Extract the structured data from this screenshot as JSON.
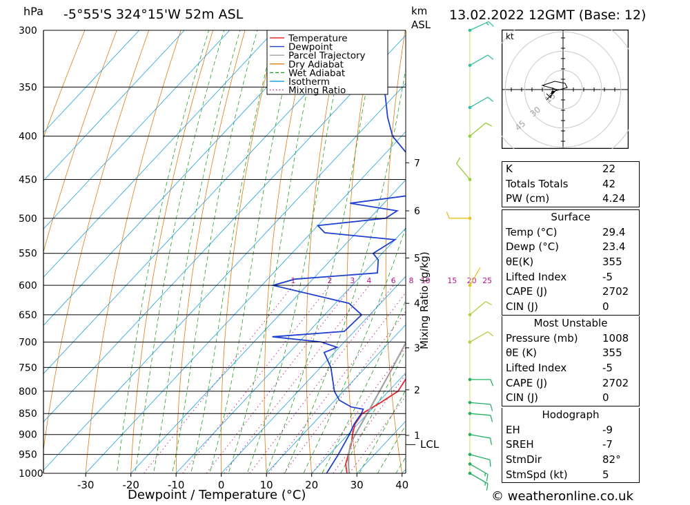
{
  "header": {
    "pressure_unit": "hPa",
    "location": "-5°55'S 324°15'W 52m ASL",
    "km_label": "km",
    "asl_label": "ASL",
    "datetime": "13.02.2022 12GMT (Base: 12)"
  },
  "footer": {
    "xlabel": "Dewpoint / Temperature (°C)",
    "mixing_label": "Mixing Ratio (g/kg)",
    "lcl_label": "LCL",
    "credit": "© weatheronline.co.uk"
  },
  "legend": [
    {
      "label": "Temperature",
      "color": "#e8282d",
      "style": "solid"
    },
    {
      "label": "Dewpoint",
      "color": "#1f3fd0",
      "style": "solid"
    },
    {
      "label": "Parcel Trajectory",
      "color": "#a0a0a0",
      "style": "solid"
    },
    {
      "label": "Dry Adiabat",
      "color": "#e07a10",
      "style": "solid"
    },
    {
      "label": "Wet Adiabat",
      "color": "#20a020",
      "style": "dashed"
    },
    {
      "label": "Isotherm",
      "color": "#1ea0e0",
      "style": "solid"
    },
    {
      "label": "Mixing Ratio",
      "color": "#c0108a",
      "style": "dotted"
    }
  ],
  "hodograph": {
    "unit": "kt",
    "ring_labels": [
      "15",
      "30",
      "45"
    ]
  },
  "indices": {
    "general": [
      {
        "key": "K",
        "value": "22"
      },
      {
        "key": "Totals Totals",
        "value": "42"
      },
      {
        "key": "PW (cm)",
        "value": "4.24"
      }
    ],
    "surface_title": "Surface",
    "surface": [
      {
        "key": "Temp (°C)",
        "value": "29.4"
      },
      {
        "key": "Dewp (°C)",
        "value": "23.4"
      },
      {
        "key": "θE(K)",
        "value": "355"
      },
      {
        "key": "Lifted Index",
        "value": "-5"
      },
      {
        "key": "CAPE (J)",
        "value": "2702"
      },
      {
        "key": "CIN (J)",
        "value": "0"
      }
    ],
    "mu_title": "Most Unstable",
    "mu": [
      {
        "key": "Pressure (mb)",
        "value": "1008"
      },
      {
        "key": "θE (K)",
        "value": "355"
      },
      {
        "key": "Lifted Index",
        "value": "-5"
      },
      {
        "key": "CAPE (J)",
        "value": "2702"
      },
      {
        "key": "CIN (J)",
        "value": "0"
      }
    ],
    "hodo_title": "Hodograph",
    "hodo": [
      {
        "key": "EH",
        "value": "-9"
      },
      {
        "key": "SREH",
        "value": "-7"
      },
      {
        "key": "StmDir",
        "value": "82°"
      },
      {
        "key": "StmSpd (kt)",
        "value": "5"
      }
    ]
  },
  "chart_data": {
    "type": "line",
    "title": "-5°55'S 324°15'W 52m ASL",
    "xlabel": "Dewpoint / Temperature (°C)",
    "ylabel": "hPa",
    "x_ticks": [
      -30,
      -20,
      -10,
      0,
      10,
      20,
      30,
      40
    ],
    "pressure_levels": [
      300,
      350,
      400,
      450,
      500,
      550,
      600,
      650,
      700,
      750,
      800,
      850,
      900,
      950,
      1000
    ],
    "ylim": [
      1000,
      300
    ],
    "km_ticks": [
      {
        "km": "1",
        "p": 902
      },
      {
        "km": "2",
        "p": 797
      },
      {
        "km": "3",
        "p": 711
      },
      {
        "km": "4",
        "p": 630
      },
      {
        "km": "5",
        "p": 557
      },
      {
        "km": "6",
        "p": 490
      },
      {
        "km": "7",
        "p": 430
      }
    ],
    "lcl_p": 925,
    "mixing_ratio_values": [
      1,
      2,
      3,
      4,
      6,
      8,
      10,
      15,
      20,
      25
    ],
    "series": [
      {
        "name": "Temperature",
        "points": [
          [
            1008,
            29.4
          ],
          [
            1000,
            27.8
          ],
          [
            975,
            25.6
          ],
          [
            950,
            24.2
          ],
          [
            925,
            22.8
          ],
          [
            900,
            21.0
          ],
          [
            875,
            19.4
          ],
          [
            850,
            18.8
          ],
          [
            825,
            20.6
          ],
          [
            800,
            22.1
          ],
          [
            775,
            21.3
          ],
          [
            750,
            20.1
          ],
          [
            725,
            18.7
          ],
          [
            700,
            17.1
          ],
          [
            650,
            14.2
          ],
          [
            600,
            11.0
          ],
          [
            570,
            9.6
          ],
          [
            550,
            9.7
          ],
          [
            525,
            8.8
          ],
          [
            500,
            7.4
          ],
          [
            480,
            5.9
          ],
          [
            450,
            3.0
          ],
          [
            420,
            0.1
          ],
          [
            410,
            -0.9
          ],
          [
            400,
            -2.0
          ],
          [
            380,
            -4.1
          ],
          [
            350,
            -8.3
          ],
          [
            320,
            -12.0
          ],
          [
            300,
            -14.6
          ]
        ]
      },
      {
        "name": "Dewpoint",
        "points": [
          [
            1008,
            23.4
          ],
          [
            1000,
            23.3
          ],
          [
            950,
            22.0
          ],
          [
            900,
            20.3
          ],
          [
            875,
            19.2
          ],
          [
            850,
            18.6
          ],
          [
            840,
            18.1
          ],
          [
            835,
            15.0
          ],
          [
            820,
            11.0
          ],
          [
            800,
            8.0
          ],
          [
            750,
            2.3
          ],
          [
            720,
            -2.3
          ],
          [
            710,
            -0.5
          ],
          [
            700,
            -5.0
          ],
          [
            690,
            -17.0
          ],
          [
            680,
            -2.2
          ],
          [
            650,
            -1.8
          ],
          [
            630,
            -7.0
          ],
          [
            600,
            -27.5
          ],
          [
            590,
            -24.0
          ],
          [
            580,
            -7.0
          ],
          [
            560,
            -9.5
          ],
          [
            550,
            -12.0
          ],
          [
            530,
            -10.0
          ],
          [
            520,
            -27.0
          ],
          [
            510,
            -30.0
          ],
          [
            500,
            -16.5
          ],
          [
            490,
            -15.5
          ],
          [
            480,
            -27.5
          ],
          [
            470,
            -16.0
          ],
          [
            420,
            -25.0
          ],
          [
            400,
            -32.0
          ],
          [
            380,
            -37.0
          ],
          [
            350,
            -44.0
          ],
          [
            300,
            -56.0
          ]
        ]
      },
      {
        "name": "Parcel Trajectory",
        "points": [
          [
            1000,
            28.3
          ],
          [
            975,
            26.2
          ],
          [
            950,
            24.3
          ],
          [
            925,
            22.6
          ],
          [
            900,
            21.6
          ],
          [
            850,
            19.9
          ],
          [
            800,
            18.0
          ],
          [
            750,
            16.0
          ],
          [
            700,
            13.7
          ],
          [
            650,
            11.1
          ],
          [
            600,
            8.0
          ],
          [
            550,
            4.5
          ],
          [
            500,
            0.6
          ],
          [
            450,
            -4.0
          ],
          [
            400,
            -9.6
          ],
          [
            350,
            -16.2
          ],
          [
            300,
            -24.6
          ]
        ]
      }
    ],
    "wind_barbs": [
      {
        "p": 1000,
        "dir": 120,
        "kt": 15
      },
      {
        "p": 975,
        "dir": 120,
        "kt": 14
      },
      {
        "p": 950,
        "dir": 105,
        "kt": 10
      },
      {
        "p": 900,
        "dir": 100,
        "kt": 8
      },
      {
        "p": 850,
        "dir": 95,
        "kt": 12
      },
      {
        "p": 825,
        "dir": 95,
        "kt": 10
      },
      {
        "p": 775,
        "dir": 90,
        "kt": 10
      },
      {
        "p": 700,
        "dir": 60,
        "kt": 8
      },
      {
        "p": 650,
        "dir": 50,
        "kt": 10
      },
      {
        "p": 600,
        "dir": 30,
        "kt": 2
      },
      {
        "p": 500,
        "dir": 270,
        "kt": 8
      },
      {
        "p": 450,
        "dir": 320,
        "kt": 10
      },
      {
        "p": 400,
        "dir": 50,
        "kt": 10
      },
      {
        "p": 370,
        "dir": 60,
        "kt": 12
      },
      {
        "p": 330,
        "dir": 60,
        "kt": 10
      },
      {
        "p": 300,
        "dir": 65,
        "kt": 15
      }
    ],
    "hodograph_trace": [
      [
        -6,
        -2
      ],
      [
        -4,
        -1
      ],
      [
        -8,
        -5
      ],
      [
        -3,
        0
      ],
      [
        -10,
        2
      ],
      [
        -4,
        4
      ],
      [
        1,
        3
      ],
      [
        2,
        1
      ],
      [
        -5,
        -1
      ],
      [
        -6,
        -4
      ],
      [
        -8,
        -2
      ]
    ],
    "grid": true,
    "legend_position": "top-right"
  }
}
